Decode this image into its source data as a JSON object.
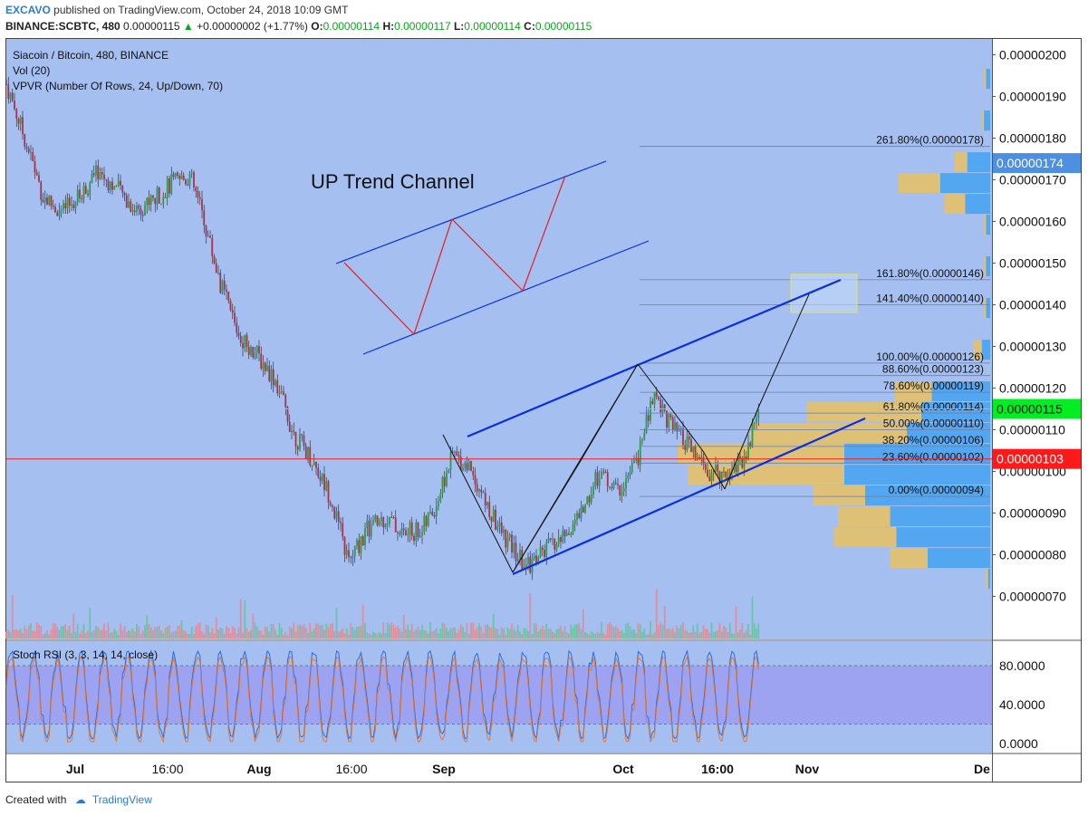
{
  "header": {
    "publisher": "EXCAVO",
    "published_text": "published on TradingView.com, October 24, 2018 10:09 GMT",
    "symbol": "BINANCE:SCBTC, 480",
    "last": "0.00000115",
    "change_arrow": "▲",
    "change": "+0.00000002 (+1.77%)",
    "o_label": "O:",
    "o_value": "0.00000114",
    "h_label": "H:",
    "h_value": "0.00000117",
    "l_label": "L:",
    "l_value": "0.00000114",
    "c_label": "C:",
    "c_value": "0.00000115"
  },
  "legend": {
    "title": "Siacoin / Bitcoin, 480, BINANCE",
    "vol": "Vol (20)",
    "vpvr": "VPVR (Number Of Rows, 24, Up/Down, 70)",
    "rsi": "Stoch RSI (3, 3, 14, 14, close)"
  },
  "annotation": {
    "channel_label": "UP Trend Channel"
  },
  "footer": {
    "created_with": "Created with",
    "brand": "TradingView"
  },
  "colors": {
    "plot_bg": "#a5bff0",
    "candle_up": "#26a041",
    "candle_down": "#a8324a",
    "channel": "#0a2ee0",
    "red_arrows": "#e02020",
    "vpvr_up": "#4aa3f0",
    "vpvr_down": "#e8c060",
    "rsi_band": "#9b9df0",
    "last_price": "#00ee22",
    "red_line": "#ff1a1a"
  },
  "chart_data": {
    "type": "candlestick",
    "symbol": "Siacoin / Bitcoin",
    "interval": "480",
    "exchange": "BINANCE",
    "y_range": [
      6e-07,
      2.02e-06
    ],
    "y_ticks": [
      "0.00000200",
      "0.00000190",
      "0.00000180",
      "0.00000170",
      "0.00000160",
      "0.00000150",
      "0.00000140",
      "0.00000130",
      "0.00000120",
      "0.00000110",
      "0.00000100",
      "0.00000090",
      "0.00000080",
      "0.00000070"
    ],
    "x_ticks": [
      "Jul",
      "16:00",
      "Aug",
      "16:00",
      "Sep",
      "Oct",
      "16:00",
      "Nov",
      "De"
    ],
    "price_path": [
      [
        "Jun 23",
        1.93
      ],
      [
        "Jun 26",
        1.8
      ],
      [
        "Jun 29",
        1.66
      ],
      [
        "Jul 2",
        1.62
      ],
      [
        "Jul 5",
        1.66
      ],
      [
        "Jul 8",
        1.72
      ],
      [
        "Jul 11",
        1.68
      ],
      [
        "Jul 14",
        1.63
      ],
      [
        "Jul 17",
        1.65
      ],
      [
        "Jul 20",
        1.69
      ],
      [
        "Jul 23",
        1.71
      ],
      [
        "Jul 25",
        1.62
      ],
      [
        "Jul 28",
        1.45
      ],
      [
        "Jul 31",
        1.33
      ],
      [
        "Aug 3",
        1.28
      ],
      [
        "Aug 6",
        1.22
      ],
      [
        "Aug 9",
        1.09
      ],
      [
        "Aug 12",
        1.03
      ],
      [
        "Aug 15",
        0.94
      ],
      [
        "Aug 18",
        0.78
      ],
      [
        "Aug 21",
        0.86
      ],
      [
        "Aug 24",
        0.89
      ],
      [
        "Aug 27",
        0.85
      ],
      [
        "Aug 30",
        0.86
      ],
      [
        "Sep 1",
        0.91
      ],
      [
        "Sep 4",
        1.04
      ],
      [
        "Sep 7",
        1.01
      ],
      [
        "Sep 10",
        0.9
      ],
      [
        "Sep 13",
        0.83
      ],
      [
        "Sep 16",
        0.77
      ],
      [
        "Sep 19",
        0.81
      ],
      [
        "Sep 22",
        0.84
      ],
      [
        "Sep 25",
        0.9
      ],
      [
        "Sep 28",
        1.0
      ],
      [
        "Oct 1",
        0.95
      ],
      [
        "Oct 4",
        1.02
      ],
      [
        "Oct 7",
        1.19
      ],
      [
        "Oct 10",
        1.1
      ],
      [
        "Oct 13",
        1.05
      ],
      [
        "Oct 16",
        0.99
      ],
      [
        "Oct 19",
        1.0
      ],
      [
        "Oct 22",
        1.04
      ],
      [
        "Oct 24",
        1.15
      ]
    ],
    "price_unit_note": "values ×1e-6 BTC",
    "fibonacci": [
      {
        "level": "261.80%",
        "price": "0.00000178"
      },
      {
        "level": "161.80%",
        "price": "0.00000146"
      },
      {
        "level": "141.40%",
        "price": "0.00000140"
      },
      {
        "level": "100.00%",
        "price": "0.00000126"
      },
      {
        "level": "88.60%",
        "price": "0.00000123"
      },
      {
        "level": "78.60%",
        "price": "0.00000119"
      },
      {
        "level": "61.80%",
        "price": "0.00000114"
      },
      {
        "level": "50.00%",
        "price": "0.00000110"
      },
      {
        "level": "38.20%",
        "price": "0.00000106"
      },
      {
        "level": "23.60%",
        "price": "0.00000102"
      },
      {
        "level": "0.00%",
        "price": "0.00000094"
      }
    ],
    "price_labels": [
      {
        "price": "0.00000174",
        "kind": "marker"
      },
      {
        "price": "0.00000115",
        "kind": "last"
      },
      {
        "price": "0.00000103",
        "kind": "line"
      }
    ],
    "horizontal_lines": [
      1.15e-06,
      1.03e-06
    ],
    "vpvr_rows": [
      {
        "price": 1.94,
        "up": 2,
        "down": 1
      },
      {
        "price": 1.84,
        "up": 3,
        "down": 1
      },
      {
        "price": 1.74,
        "up": 11,
        "down": 6
      },
      {
        "price": 1.69,
        "up": 24,
        "down": 20
      },
      {
        "price": 1.64,
        "up": 12,
        "down": 10
      },
      {
        "price": 1.59,
        "up": 2,
        "down": 1
      },
      {
        "price": 1.49,
        "up": 2,
        "down": 1
      },
      {
        "price": 1.39,
        "up": 2,
        "down": 1
      },
      {
        "price": 1.29,
        "up": 4,
        "down": 4
      },
      {
        "price": 1.19,
        "up": 28,
        "down": 18
      },
      {
        "price": 1.14,
        "up": 33,
        "down": 55
      },
      {
        "price": 1.09,
        "up": 40,
        "down": 75
      },
      {
        "price": 1.04,
        "up": 70,
        "down": 80
      },
      {
        "price": 0.99,
        "up": 70,
        "down": 75
      },
      {
        "price": 0.94,
        "up": 60,
        "down": 25
      },
      {
        "price": 0.89,
        "up": 48,
        "down": 25
      },
      {
        "price": 0.84,
        "up": 45,
        "down": 30
      },
      {
        "price": 0.79,
        "up": 30,
        "down": 18
      },
      {
        "price": 0.74,
        "up": 1,
        "down": 1
      }
    ],
    "stoch_rsi": {
      "ticks": [
        "80.0000",
        "40.0000",
        "0.0000"
      ],
      "band": [
        20,
        80
      ]
    }
  }
}
